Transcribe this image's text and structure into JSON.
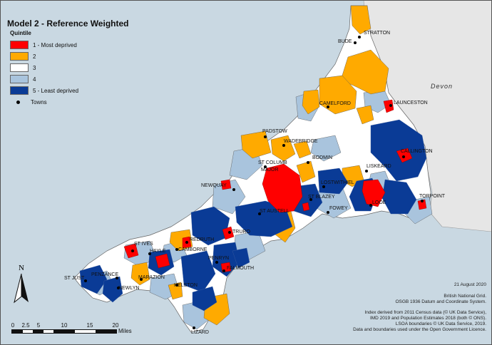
{
  "title": "Model 2 - Reference Weighted",
  "legend": {
    "title": "Quintile",
    "items": [
      {
        "label": "1 - Most deprived",
        "color": "#ff0000"
      },
      {
        "label": "2",
        "color": "#ffaa00"
      },
      {
        "label": "3",
        "color": "#ffffff"
      },
      {
        "label": "4",
        "color": "#a9c4dd"
      },
      {
        "label": "5 - Least deprived",
        "color": "#0a3b96"
      }
    ],
    "towns_label": "Towns"
  },
  "neighbour_label": "Devon",
  "north_label": "N",
  "scale": {
    "ticks": [
      "0",
      "2.5",
      "5",
      "10",
      "15",
      "20"
    ],
    "unit": "Miles"
  },
  "date": "21 August 2020",
  "credits": [
    "British National Grid.",
    "OSGB 1936 Datum and Coordinate System.",
    "",
    "Index derived from 2011 Census data (© UK Data Service),",
    "IMD 2019 and Population Estimates 2018 (both © ONS).",
    "LSOA boundaries © UK Data Service, 2019.",
    "Data and boundaries used under the Open Government Licence."
  ],
  "towns": [
    {
      "name": "STRATTON"
    },
    {
      "name": "BUDE"
    },
    {
      "name": "LAUNCESTON"
    },
    {
      "name": "CAMELFORD"
    },
    {
      "name": "PADSTOW"
    },
    {
      "name": "WADEBRIDGE"
    },
    {
      "name": "BODMIN"
    },
    {
      "name": "CALLINGTON"
    },
    {
      "name": "ST COLUMB"
    },
    {
      "name": "MAJOR"
    },
    {
      "name": "LISKEARD"
    },
    {
      "name": "NEWQUAY"
    },
    {
      "name": "LOSTWITHIEL"
    },
    {
      "name": "ST BLAZEY"
    },
    {
      "name": "LOOE"
    },
    {
      "name": "TORPOINT"
    },
    {
      "name": "ST AUSTELL"
    },
    {
      "name": "FOWEY"
    },
    {
      "name": "TRURO"
    },
    {
      "name": "REDRUTH"
    },
    {
      "name": "ST IVES"
    },
    {
      "name": "CAMBORNE"
    },
    {
      "name": "HAYLE"
    },
    {
      "name": "PENRYN"
    },
    {
      "name": "FALMOUTH"
    },
    {
      "name": "ST JUST"
    },
    {
      "name": "PENZANCE"
    },
    {
      "name": "MARAZION"
    },
    {
      "name": "NEWLYN"
    },
    {
      "name": "HELSTON"
    },
    {
      "name": "LIZARD"
    }
  ]
}
